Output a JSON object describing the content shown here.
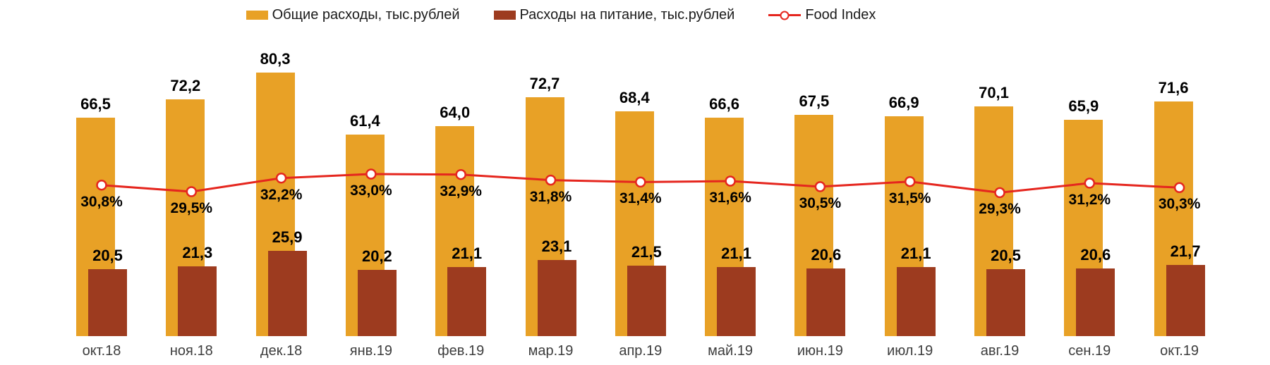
{
  "legend": {
    "items": [
      {
        "id": "total",
        "label": "Общие расходы, тыс.рублей",
        "swatch": "bar",
        "color": "#E8A126"
      },
      {
        "id": "food",
        "label": "Расходы на питание, тыс.рублей",
        "swatch": "bar",
        "color": "#9D3B1F"
      },
      {
        "id": "food_index",
        "label": "Food Index",
        "swatch": "line-circle",
        "color": "#E5261E"
      }
    ]
  },
  "chart_data": {
    "type": "bar",
    "subtype": "overlapped-bars-with-line-on-secondary-percent-axis",
    "title": "",
    "xlabel": "",
    "ylabel": "",
    "grid": false,
    "legend_position": "top-center",
    "data_labels": true,
    "value_axis": {
      "visible": false,
      "min": 0,
      "implied_max": 86,
      "unit": "тыс.рублей"
    },
    "percent_axis": {
      "visible": false,
      "unit": "%"
    },
    "categories": [
      "окт.18",
      "ноя.18",
      "дек.18",
      "янв.19",
      "фев.19",
      "мар.19",
      "апр.19",
      "май.19",
      "июн.19",
      "июл.19",
      "авг.19",
      "сен.19",
      "окт.19"
    ],
    "series": [
      {
        "name": "Общие расходы, тыс.рублей",
        "type": "bar",
        "color": "#E8A126",
        "values": [
          66.5,
          72.2,
          80.3,
          61.4,
          64.0,
          72.7,
          68.4,
          66.6,
          67.5,
          66.9,
          70.1,
          65.9,
          71.6
        ],
        "labels": [
          "66,5",
          "72,2",
          "80,3",
          "61,4",
          "64,0",
          "72,7",
          "68,4",
          "66,6",
          "67,5",
          "66,9",
          "70,1",
          "65,9",
          "71,6"
        ]
      },
      {
        "name": "Расходы на питание, тыс.рублей",
        "type": "bar",
        "color": "#9D3B1F",
        "values": [
          20.5,
          21.3,
          25.9,
          20.2,
          21.1,
          23.1,
          21.5,
          21.1,
          20.6,
          21.1,
          20.5,
          20.6,
          21.7
        ],
        "labels": [
          "20,5",
          "21,3",
          "25,9",
          "20,2",
          "21,1",
          "23,1",
          "21,5",
          "21,1",
          "20,6",
          "21,1",
          "20,5",
          "20,6",
          "21,7"
        ]
      },
      {
        "name": "Food Index",
        "type": "line",
        "marker": "open-circle",
        "color": "#E5261E",
        "values": [
          30.8,
          29.5,
          32.2,
          33.0,
          32.9,
          31.8,
          31.4,
          31.6,
          30.5,
          31.5,
          29.3,
          31.2,
          30.3
        ],
        "labels": [
          "30,8%",
          "29,5%",
          "32,2%",
          "33,0%",
          "32,9%",
          "31,8%",
          "31,4%",
          "31,6%",
          "30,5%",
          "31,5%",
          "29,3%",
          "31,2%",
          "30,3%"
        ]
      }
    ]
  }
}
